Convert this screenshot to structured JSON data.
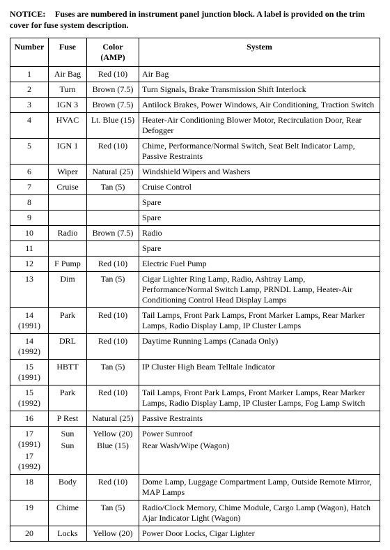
{
  "notice": {
    "label": "NOTICE:",
    "text": "Fuses are numbered in instrument panel junction block. A label is provided on the trim cover for fuse system description."
  },
  "table": {
    "headers": {
      "number": "Number",
      "fuse": "Fuse",
      "color": "Color (AMP)",
      "system": "System"
    },
    "rows": [
      {
        "number": "1",
        "fuse": "Air Bag",
        "color": "Red (10)",
        "system": "Air Bag"
      },
      {
        "number": "2",
        "fuse": "Turn",
        "color": "Brown (7.5)",
        "system": "Turn Signals, Brake Transmission Shift Interlock"
      },
      {
        "number": "3",
        "fuse": "IGN 3",
        "color": "Brown (7.5)",
        "system": "Antilock Brakes, Power Windows, Air Conditioning, Traction Switch"
      },
      {
        "number": "4",
        "fuse": "HVAC",
        "color": "Lt. Blue (15)",
        "system": "Heater-Air Conditioning Blower Motor, Recirculation Door, Rear Defogger"
      },
      {
        "number": "5",
        "fuse": "IGN 1",
        "color": "Red (10)",
        "system": "Chime, Performance/Normal Switch, Seat Belt Indicator Lamp, Passive Restraints"
      },
      {
        "number": "6",
        "fuse": "Wiper",
        "color": "Natural (25)",
        "system": "Windshield Wipers and Washers"
      },
      {
        "number": "7",
        "fuse": "Cruise",
        "color": "Tan (5)",
        "system": "Cruise Control"
      },
      {
        "number": "8",
        "fuse": "",
        "color": "",
        "system": "Spare"
      },
      {
        "number": "9",
        "fuse": "",
        "color": "",
        "system": "Spare"
      },
      {
        "number": "10",
        "fuse": "Radio",
        "color": "Brown (7.5)",
        "system": "Radio"
      },
      {
        "number": "11",
        "fuse": "",
        "color": "",
        "system": "Spare"
      },
      {
        "number": "12",
        "fuse": "F Pump",
        "color": "Red (10)",
        "system": "Electric Fuel Pump"
      },
      {
        "number": "13",
        "fuse": "Dim",
        "color": "Tan (5)",
        "system": "Cigar Lighter Ring Lamp, Radio, Ashtray Lamp, Performance/Normal Switch Lamp, PRNDL Lamp, Heater-Air Conditioning Control Head Display Lamps"
      },
      {
        "multi": true,
        "number": [
          "14 (1991)",
          "14 (1992)"
        ],
        "fuse": [
          "Park",
          "DRL"
        ],
        "color": [
          "Red (10)",
          "Red (10)"
        ],
        "system": [
          "Tail Lamps, Front Park Lamps, Front Marker Lamps, Rear Marker Lamps, Radio Display Lamp, IP Cluster Lamps",
          "Daytime Running Lamps (Canada Only)"
        ]
      },
      {
        "multi": true,
        "number": [
          "15 (1991)",
          "15 (1992)"
        ],
        "fuse": [
          "HBTT",
          "Park"
        ],
        "color": [
          "Tan (5)",
          "Red (10)"
        ],
        "system": [
          "IP Cluster High Beam Telltale Indicator",
          "Tail Lamps, Front Park Lamps, Front Marker Lamps, Rear Marker Lamps, Radio Display Lamp, IP Cluster Lamps, Fog Lamp Switch"
        ]
      },
      {
        "number": "16",
        "fuse": "P Rest",
        "color": "Natural (25)",
        "system": "Passive Restraints"
      },
      {
        "multi": true,
        "number": [
          "17 (1991)",
          "17 (1992)"
        ],
        "fuse": [
          "Sun",
          "Sun"
        ],
        "color": [
          "Yellow (20)",
          "Blue (15)"
        ],
        "system": [
          "Power Sunroof",
          "Rear Wash/Wipe (Wagon)"
        ]
      },
      {
        "number": "18",
        "fuse": "Body",
        "color": "Red (10)",
        "system": "Dome Lamp, Luggage Compartment Lamp, Outside Remote Mirror, MAP Lamps"
      },
      {
        "number": "19",
        "fuse": "Chime",
        "color": "Tan (5)",
        "system": "Radio/Clock Memory, Chime Module, Cargo Lamp (Wagon), Hatch Ajar Indicator Light (Wagon)"
      },
      {
        "number": "20",
        "fuse": "Locks",
        "color": "Yellow (20)",
        "system": "Power Door Locks, Cigar Lighter"
      }
    ]
  }
}
